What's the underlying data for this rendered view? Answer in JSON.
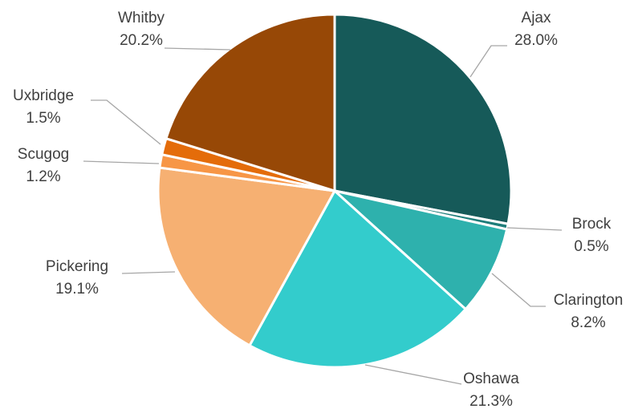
{
  "chart_data": {
    "type": "pie",
    "title": "",
    "legend": "none",
    "data_labels": "outside-with-leader-lines",
    "slices": [
      {
        "label": "Ajax",
        "value": 28.0,
        "text": "28.0%",
        "color": "#165a59"
      },
      {
        "label": "Brock",
        "value": 0.5,
        "text": "0.5%",
        "color": "#1e7d7a"
      },
      {
        "label": "Clarington",
        "value": 8.2,
        "text": "8.2%",
        "color": "#2eb1ad"
      },
      {
        "label": "Oshawa",
        "value": 21.3,
        "text": "21.3%",
        "color": "#33cccc"
      },
      {
        "label": "Pickering",
        "value": 19.1,
        "text": "19.1%",
        "color": "#f6b072"
      },
      {
        "label": "Scugog",
        "value": 1.2,
        "text": "1.2%",
        "color": "#f79646"
      },
      {
        "label": "Uxbridge",
        "value": 1.5,
        "text": "1.5%",
        "color": "#e46c0a"
      },
      {
        "label": "Whitby",
        "value": 20.2,
        "text": "20.2%",
        "color": "#974806"
      }
    ]
  }
}
